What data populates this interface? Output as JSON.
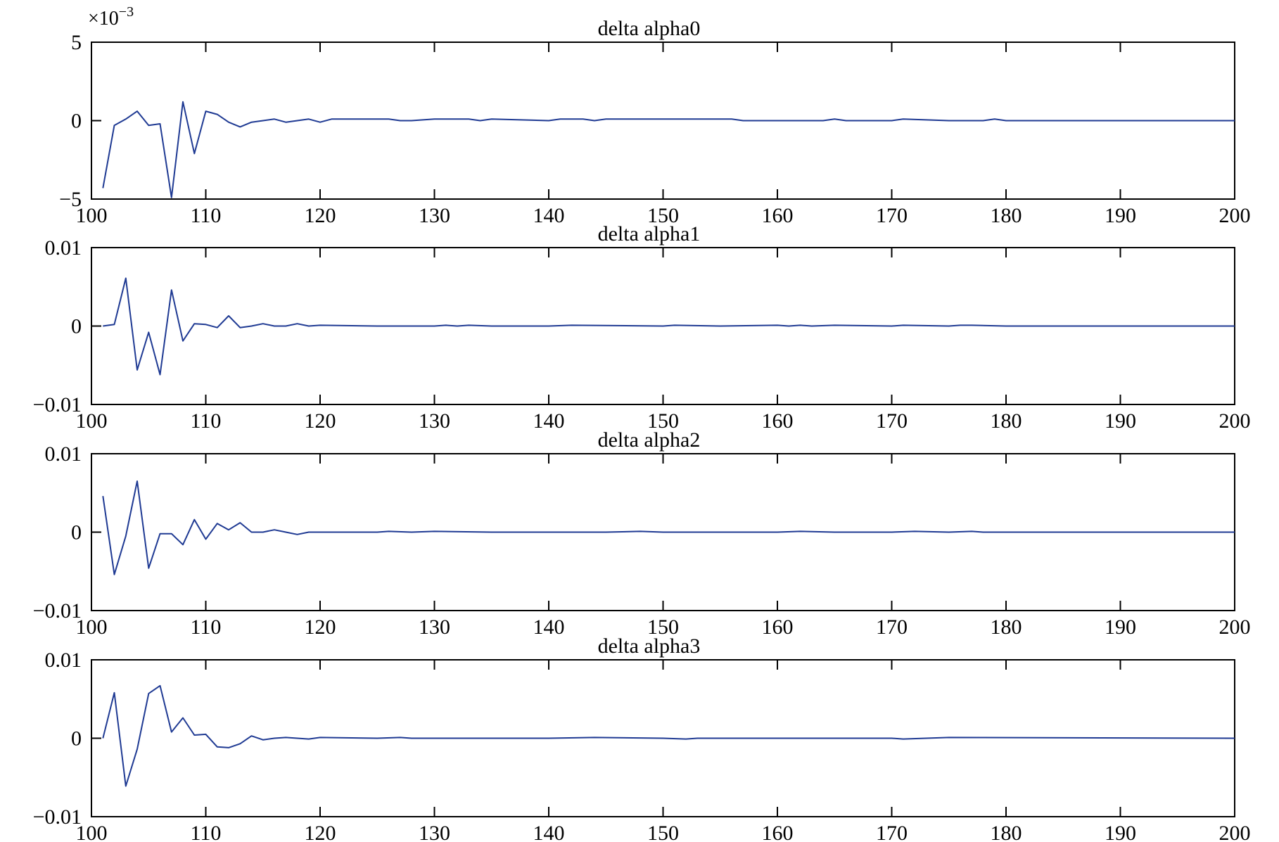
{
  "chart_data": [
    {
      "type": "line",
      "title": "delta alpha0",
      "y_multiplier_label": "×10",
      "y_multiplier_exp": "−3",
      "xlim": [
        100,
        200
      ],
      "ylim": [
        -5,
        5
      ],
      "xticks": [
        100,
        110,
        120,
        130,
        140,
        150,
        160,
        170,
        180,
        190,
        200
      ],
      "xtick_labels": [
        "100",
        "110",
        "120",
        "130",
        "140",
        "150",
        "160",
        "170",
        "180",
        "190",
        "200"
      ],
      "yticks": [
        -5,
        0,
        5
      ],
      "ytick_labels": [
        "−5",
        "0",
        "5"
      ],
      "color": "#1f3a93",
      "x": [
        101,
        102,
        103,
        104,
        105,
        106,
        107,
        108,
        109,
        110,
        111,
        112,
        113,
        114,
        115,
        116,
        117,
        118,
        119,
        120,
        121,
        126,
        127,
        128,
        130,
        133,
        134,
        135,
        140,
        141,
        142,
        143,
        144,
        145,
        148,
        150,
        156,
        157,
        162,
        163,
        164,
        165,
        166,
        170,
        171,
        175,
        178,
        179,
        180,
        200
      ],
      "y": [
        -4.3,
        -0.3,
        0.1,
        0.6,
        -0.3,
        -0.2,
        -4.9,
        1.2,
        -2.1,
        0.6,
        0.4,
        -0.1,
        -0.4,
        -0.1,
        0.0,
        0.1,
        -0.1,
        0.0,
        0.1,
        -0.1,
        0.1,
        0.1,
        0.0,
        0.0,
        0.1,
        0.1,
        0.0,
        0.1,
        0.0,
        0.1,
        0.1,
        0.1,
        0.0,
        0.1,
        0.1,
        0.1,
        0.1,
        0.0,
        0.0,
        0.0,
        0.0,
        0.1,
        0.0,
        0.0,
        0.1,
        0.0,
        0.0,
        0.1,
        0.0,
        0.0
      ]
    },
    {
      "type": "line",
      "title": "delta alpha1",
      "xlim": [
        100,
        200
      ],
      "ylim": [
        -0.01,
        0.01
      ],
      "xticks": [
        100,
        110,
        120,
        130,
        140,
        150,
        160,
        170,
        180,
        190,
        200
      ],
      "xtick_labels": [
        "100",
        "110",
        "120",
        "130",
        "140",
        "150",
        "160",
        "170",
        "180",
        "190",
        "200"
      ],
      "yticks": [
        -0.01,
        0,
        0.01
      ],
      "ytick_labels": [
        "−0.01",
        "0",
        "0.01"
      ],
      "color": "#1f3a93",
      "x": [
        101,
        102,
        103,
        104,
        105,
        106,
        107,
        108,
        109,
        110,
        111,
        112,
        113,
        114,
        115,
        116,
        117,
        118,
        119,
        120,
        125,
        130,
        131,
        132,
        133,
        135,
        140,
        142,
        150,
        151,
        155,
        160,
        161,
        162,
        163,
        165,
        170,
        171,
        175,
        176,
        177,
        180,
        200
      ],
      "y": [
        0.0,
        0.0002,
        0.0061,
        -0.0056,
        -0.0008,
        -0.0062,
        0.0046,
        -0.0019,
        0.0003,
        0.0002,
        -0.0002,
        0.0013,
        -0.0002,
        0.0,
        0.0003,
        0.0,
        0.0,
        0.0003,
        0.0,
        0.0001,
        0.0,
        0.0,
        0.0001,
        0.0,
        0.0001,
        0.0,
        0.0,
        0.0001,
        0.0,
        0.0001,
        0.0,
        0.0001,
        0.0,
        0.0001,
        0.0,
        0.0001,
        0.0,
        0.0001,
        0.0,
        0.0001,
        0.0001,
        0.0,
        0.0
      ]
    },
    {
      "type": "line",
      "title": "delta alpha2",
      "xlim": [
        100,
        200
      ],
      "ylim": [
        -0.01,
        0.01
      ],
      "xticks": [
        100,
        110,
        120,
        130,
        140,
        150,
        160,
        170,
        180,
        190,
        200
      ],
      "xtick_labels": [
        "100",
        "110",
        "120",
        "130",
        "140",
        "150",
        "160",
        "170",
        "180",
        "190",
        "200"
      ],
      "yticks": [
        -0.01,
        0,
        0.01
      ],
      "ytick_labels": [
        "−0.01",
        "0",
        "0.01"
      ],
      "color": "#1f3a93",
      "x": [
        101,
        102,
        103,
        104,
        105,
        106,
        107,
        108,
        109,
        110,
        111,
        112,
        113,
        114,
        115,
        116,
        117,
        118,
        119,
        120,
        125,
        126,
        128,
        130,
        135,
        140,
        145,
        148,
        150,
        155,
        160,
        162,
        165,
        170,
        172,
        175,
        177,
        178,
        180,
        200
      ],
      "y": [
        0.0046,
        -0.0054,
        -0.0005,
        0.0065,
        -0.0046,
        -0.0002,
        -0.0002,
        -0.0016,
        0.0016,
        -0.0009,
        0.0011,
        0.0003,
        0.0012,
        0.0,
        0.0,
        0.0003,
        0.0,
        -0.0003,
        0.0,
        0.0,
        0.0,
        0.0001,
        0.0,
        0.0001,
        0.0,
        0.0,
        0.0,
        0.0001,
        0.0,
        0.0,
        0.0,
        0.0001,
        0.0,
        0.0,
        0.0001,
        0.0,
        0.0001,
        0.0,
        0.0,
        0.0
      ]
    },
    {
      "type": "line",
      "title": "delta alpha3",
      "xlim": [
        100,
        200
      ],
      "ylim": [
        -0.01,
        0.01
      ],
      "xticks": [
        100,
        110,
        120,
        130,
        140,
        150,
        160,
        170,
        180,
        190,
        200
      ],
      "xtick_labels": [
        "100",
        "110",
        "120",
        "130",
        "140",
        "150",
        "160",
        "170",
        "180",
        "190",
        "200"
      ],
      "yticks": [
        -0.01,
        0,
        0.01
      ],
      "ytick_labels": [
        "−0.01",
        "0",
        "0.01"
      ],
      "color": "#1f3a93",
      "x": [
        101,
        102,
        103,
        104,
        105,
        106,
        107,
        108,
        109,
        110,
        111,
        112,
        113,
        114,
        115,
        116,
        117,
        118,
        119,
        120,
        125,
        127,
        128,
        135,
        140,
        144,
        150,
        152,
        153,
        160,
        165,
        170,
        171,
        175,
        200
      ],
      "y": [
        0.0,
        0.0058,
        -0.0061,
        -0.0014,
        0.0057,
        0.0067,
        0.0008,
        0.0026,
        0.0004,
        0.0005,
        -0.0011,
        -0.0012,
        -0.0007,
        0.0003,
        -0.0002,
        0.0,
        0.0001,
        0.0,
        -0.0001,
        0.0001,
        0.0,
        0.0001,
        0.0,
        0.0,
        0.0,
        0.0001,
        0.0,
        -0.0001,
        0.0,
        0.0,
        0.0,
        0.0,
        -0.0001,
        0.0001,
        0.0
      ]
    }
  ]
}
